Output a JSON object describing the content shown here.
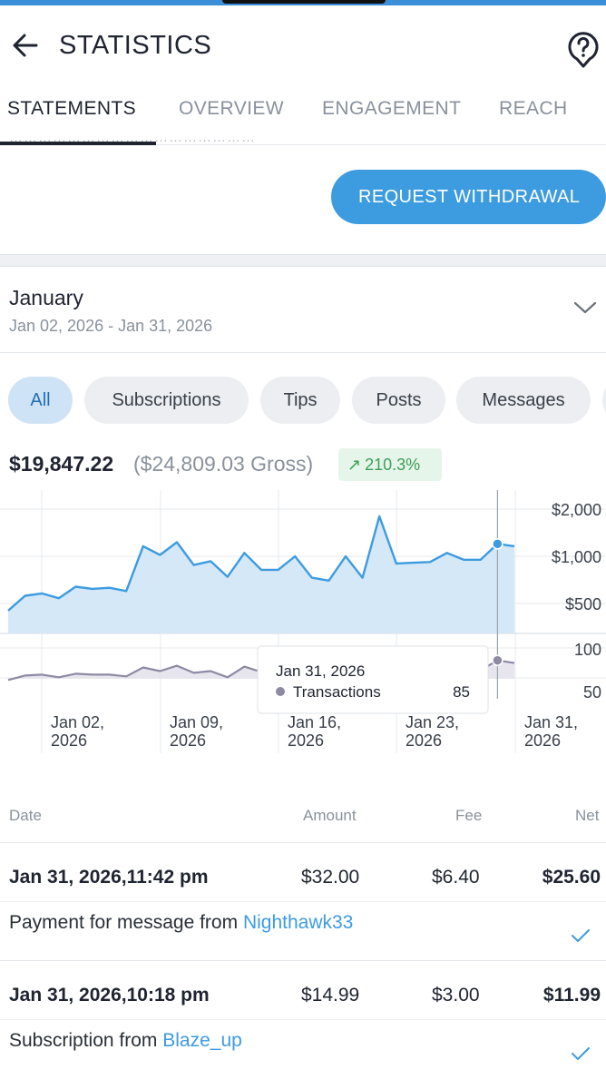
{
  "header": {
    "title": "STATISTICS"
  },
  "tabs": [
    {
      "label": "STATEMENTS",
      "active": true
    },
    {
      "label": "OVERVIEW",
      "active": false
    },
    {
      "label": "ENGAGEMENT",
      "active": false
    },
    {
      "label": "REACH",
      "active": false
    }
  ],
  "withdraw": {
    "label": "REQUEST WITHDRAWAL"
  },
  "period": {
    "month": "January",
    "range": "Jan 02, 2026 - Jan 31, 2026"
  },
  "filters": [
    {
      "label": "All",
      "active": true
    },
    {
      "label": "Subscriptions",
      "active": false
    },
    {
      "label": "Tips",
      "active": false
    },
    {
      "label": "Posts",
      "active": false
    },
    {
      "label": "Messages",
      "active": false
    }
  ],
  "summary": {
    "net": "$19,847.22",
    "gross": "($24,809.03 Gross)",
    "growth": "210.3%"
  },
  "chart_data": {
    "type": "area",
    "x_ticks": [
      "Jan 02, 2026",
      "Jan 09, 2026",
      "Jan 16, 2026",
      "Jan 23, 2026",
      "Jan 31, 2026"
    ],
    "earnings_ticks": [
      "$2,000",
      "$1,000",
      "$500"
    ],
    "transactions_ticks": [
      "100",
      "50"
    ],
    "series": [
      {
        "name": "Earnings",
        "color": "#3d9be0",
        "values": [
          450,
          560,
          580,
          540,
          640,
          620,
          630,
          600,
          1160,
          1020,
          1230,
          880,
          930,
          740,
          1050,
          820,
          820,
          1000,
          730,
          700,
          1000,
          730,
          1800,
          900,
          910,
          920,
          1050,
          950,
          950,
          1200,
          1160
        ]
      },
      {
        "name": "Transactions",
        "color": "#8e8aa3",
        "values": [
          63,
          68,
          69,
          66,
          70,
          69,
          69,
          67,
          77,
          73,
          79,
          71,
          73,
          66,
          78,
          72,
          72,
          76,
          70,
          68,
          74,
          69,
          91,
          72,
          73,
          72,
          82,
          74,
          74,
          85,
          82
        ]
      }
    ],
    "tooltip": {
      "date": "Jan 31, 2026",
      "series": "Transactions",
      "value": "85"
    }
  },
  "table": {
    "headers": {
      "date": "Date",
      "amount": "Amount",
      "fee": "Fee",
      "net": "Net"
    },
    "rows": [
      {
        "datetime": "Jan 31, 2026,11:42 pm",
        "amount": "$32.00",
        "fee": "$6.40",
        "net": "$25.60",
        "description": "Payment for message from ",
        "user": "Nighthawk33"
      },
      {
        "datetime": "Jan 31, 2026,10:18 pm",
        "amount": "$14.99",
        "fee": "$3.00",
        "net": "$11.99",
        "description": "Subscription from ",
        "user": "Blaze_up"
      }
    ]
  }
}
